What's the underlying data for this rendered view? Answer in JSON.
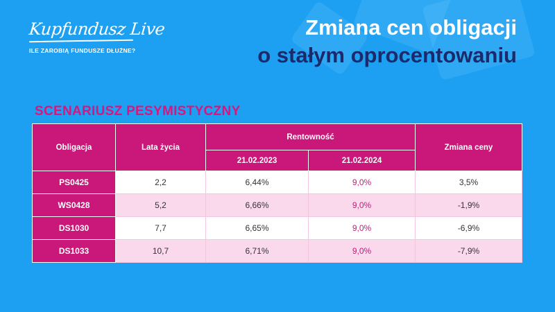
{
  "logo": {
    "name": "Kupfundusz Live",
    "subtitle": "ILE ZAROBIĄ FUNDUSZE DŁUŻNE?"
  },
  "title": {
    "line1": "Zmiana cen obligacji",
    "line2": "o stałym oprocentowaniu"
  },
  "scenario_label": "SCENARIUSZ PESYMISTYCZNY",
  "table": {
    "headers": {
      "bond": "Obligacja",
      "years": "Lata  życia",
      "yield": "Rentowność",
      "date1": "21.02.2023",
      "date2": "21.02.2024",
      "price_change": "Zmiana ceny"
    },
    "rows": [
      {
        "bond": "PS0425",
        "years": "2,2",
        "yield_2023": "6,44%",
        "yield_2024": "9,0%",
        "price_change": "3,5%"
      },
      {
        "bond": "WS0428",
        "years": "5,2",
        "yield_2023": "6,66%",
        "yield_2024": "9,0%",
        "price_change": "-1,9%"
      },
      {
        "bond": "DS1030",
        "years": "7,7",
        "yield_2023": "6,65%",
        "yield_2024": "9,0%",
        "price_change": "-6,9%"
      },
      {
        "bond": "DS1033",
        "years": "10,7",
        "yield_2023": "6,71%",
        "yield_2024": "9,0%",
        "price_change": "-7,9%"
      }
    ]
  },
  "colors": {
    "background": "#1ea0f2",
    "accent": "#c9177a",
    "title_dark": "#1b2a6b",
    "row_pink": "#fbd9ec"
  }
}
